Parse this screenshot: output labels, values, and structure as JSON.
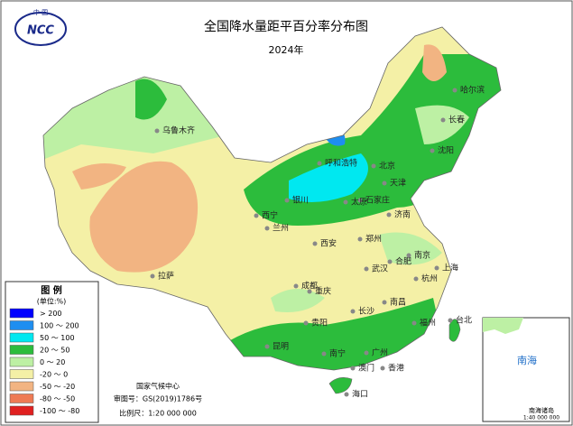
{
  "title": "全国降水量距平百分率分布图",
  "subtitle": "2024年",
  "logo": {
    "top": "中 国",
    "text": "NCC"
  },
  "legend": {
    "title": "图 例",
    "unit": "(单位:%)",
    "items": [
      {
        "label": "> 200",
        "color": "#0000ff"
      },
      {
        "label": "100 ～ 200",
        "color": "#1e8ef0"
      },
      {
        "label": "50 ～ 100",
        "color": "#00e8f0"
      },
      {
        "label": "20 ～ 50",
        "color": "#2cbc3c"
      },
      {
        "label": "0 ～ 20",
        "color": "#bdf0a4"
      },
      {
        "label": "-20 ～ 0",
        "color": "#f4f0a6"
      },
      {
        "label": "-50 ～ -20",
        "color": "#f2b482"
      },
      {
        "label": "-80 ～ -50",
        "color": "#ee7a54"
      },
      {
        "label": "-100 ～ -80",
        "color": "#e02020"
      }
    ]
  },
  "cities": [
    "哈尔滨",
    "长春",
    "沈阳",
    "呼和浩特",
    "北京",
    "天津",
    "石家庄",
    "银川",
    "太原",
    "济南",
    "西宁",
    "兰州",
    "郑州",
    "西安",
    "合肥",
    "南京",
    "上海",
    "武汉",
    "杭州",
    "成都",
    "重庆",
    "长沙",
    "南昌",
    "贵阳",
    "福州",
    "台北",
    "昆明",
    "南宁",
    "广州",
    "澳门",
    "香港",
    "海口",
    "拉萨",
    "乌鲁木齐"
  ],
  "footer": [
    "国家气候中心",
    "审图号：GS(2019)1786号",
    "比例尺：1:20 000 000"
  ],
  "inset": {
    "sea": "南海",
    "title": "南海诸岛",
    "scale": "1:40 000 000"
  }
}
